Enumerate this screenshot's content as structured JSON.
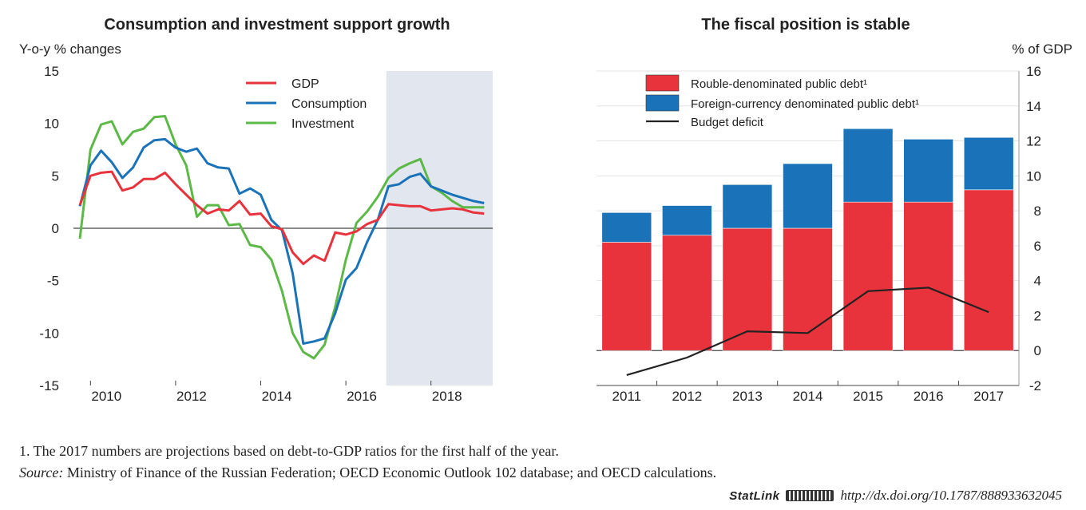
{
  "chart_data": [
    {
      "type": "line",
      "title": "Consumption and investment support growth",
      "ylabel": "Y-o-y % changes",
      "ylim": [
        -15,
        15
      ],
      "yticks": [
        15,
        10,
        5,
        0,
        -5,
        -10,
        -15
      ],
      "xlim": [
        2009.6,
        2019.45
      ],
      "xticks": [
        "2010",
        "2012",
        "2014",
        "2016",
        "2018"
      ],
      "xtick_values": [
        2010,
        2012,
        2014,
        2016,
        2018
      ],
      "projection_shade": [
        2016.95,
        2019.45
      ],
      "legend_position": "top-center",
      "series": [
        {
          "name": "GDP",
          "color": "#e8333c",
          "x": [
            2009.75,
            2010,
            2010.25,
            2010.5,
            2010.75,
            2011,
            2011.25,
            2011.5,
            2011.75,
            2012,
            2012.25,
            2012.5,
            2012.75,
            2013,
            2013.25,
            2013.5,
            2013.75,
            2014,
            2014.25,
            2014.5,
            2014.75,
            2015,
            2015.25,
            2015.5,
            2015.75,
            2016,
            2016.25,
            2016.5,
            2016.75,
            2017,
            2017.25,
            2017.5,
            2017.75,
            2018,
            2018.25,
            2018.5,
            2018.75,
            2019,
            2019.25
          ],
          "values": [
            2.2,
            5.0,
            5.3,
            5.4,
            3.6,
            3.9,
            4.7,
            4.7,
            5.3,
            4.2,
            3.2,
            2.2,
            1.4,
            1.8,
            1.7,
            2.6,
            1.3,
            1.4,
            0.2,
            -0.1,
            -2.3,
            -3.4,
            -2.6,
            -3.1,
            -0.4,
            -0.6,
            -0.3,
            0.4,
            0.8,
            2.3,
            2.2,
            2.1,
            2.1,
            1.7,
            1.8,
            1.9,
            1.8,
            1.5,
            1.4
          ]
        },
        {
          "name": "Consumption",
          "color": "#1a73b8",
          "x": [
            2009.75,
            2010,
            2010.25,
            2010.5,
            2010.75,
            2011,
            2011.25,
            2011.5,
            2011.75,
            2012,
            2012.25,
            2012.5,
            2012.75,
            2013,
            2013.25,
            2013.5,
            2013.75,
            2014,
            2014.25,
            2014.5,
            2014.75,
            2015,
            2015.25,
            2015.5,
            2015.75,
            2016,
            2016.25,
            2016.5,
            2016.75,
            2017,
            2017.25,
            2017.5,
            2017.75,
            2018,
            2018.25,
            2018.5,
            2018.75,
            2019,
            2019.25
          ],
          "values": [
            2.1,
            6.0,
            7.4,
            6.3,
            4.8,
            5.8,
            7.7,
            8.4,
            8.5,
            7.7,
            7.3,
            7.6,
            6.2,
            5.8,
            5.7,
            3.3,
            3.8,
            3.2,
            0.8,
            -0.2,
            -4.3,
            -11.0,
            -10.8,
            -10.5,
            -8.1,
            -4.9,
            -3.8,
            -1.3,
            0.8,
            4.0,
            4.2,
            4.9,
            5.2,
            4.0,
            3.6,
            3.2,
            2.9,
            2.6,
            2.4
          ]
        },
        {
          "name": "Investment",
          "color": "#5cb847",
          "x": [
            2009.75,
            2010,
            2010.25,
            2010.5,
            2010.75,
            2011,
            2011.25,
            2011.5,
            2011.75,
            2012,
            2012.25,
            2012.5,
            2012.75,
            2013,
            2013.25,
            2013.5,
            2013.75,
            2014,
            2014.25,
            2014.5,
            2014.75,
            2015,
            2015.25,
            2015.5,
            2015.75,
            2016,
            2016.25,
            2016.5,
            2016.75,
            2017,
            2017.25,
            2017.5,
            2017.75,
            2018,
            2018.25,
            2018.5,
            2018.75,
            2019,
            2019.25
          ],
          "values": [
            -1.0,
            7.5,
            9.9,
            10.2,
            8.0,
            9.2,
            9.5,
            10.6,
            10.7,
            8.0,
            6.0,
            1.1,
            2.2,
            2.2,
            0.3,
            0.4,
            -1.6,
            -1.8,
            -3.0,
            -6.0,
            -10.0,
            -11.8,
            -12.4,
            -11.1,
            -7.5,
            -3.0,
            0.5,
            1.6,
            3.0,
            4.8,
            5.7,
            6.2,
            6.6,
            4.0,
            3.4,
            2.6,
            2.0,
            2.0,
            2.0
          ]
        }
      ]
    },
    {
      "type": "bar",
      "stacked": true,
      "title": "The fiscal position is stable",
      "ylabel": "% of GDP",
      "ylim": [
        -2,
        16
      ],
      "yticks": [
        16,
        14,
        12,
        10,
        8,
        6,
        4,
        2,
        0,
        -2
      ],
      "categories": [
        "2011",
        "2012",
        "2013",
        "2014",
        "2015",
        "2016",
        "2017"
      ],
      "legend_position": "top-left",
      "series": [
        {
          "name": "Rouble-denominated public debt¹",
          "color": "#e8333c",
          "values": [
            6.2,
            6.6,
            7.0,
            7.0,
            8.5,
            8.5,
            9.2
          ]
        },
        {
          "name": "Foreign-currency denominated public debt¹",
          "color": "#1a73b8",
          "values": [
            1.7,
            1.7,
            2.5,
            3.7,
            4.2,
            3.6,
            3.0
          ]
        }
      ],
      "line_series": {
        "name": "Budget deficit",
        "color": "#222222",
        "values": [
          -1.4,
          -0.4,
          1.1,
          1.0,
          3.4,
          3.6,
          2.2
        ]
      }
    }
  ],
  "footnote": "1.  The 2017 numbers are projections based on debt-to-GDP ratios for the first half of the year.",
  "source_label": "Source:",
  "source_text": "Ministry of Finance of the Russian Federation; OECD Economic Outlook 102 database; and OECD calculations.",
  "statlink_label": "StatLink",
  "statlink_url": "http://dx.doi.org/10.1787/888933632045"
}
